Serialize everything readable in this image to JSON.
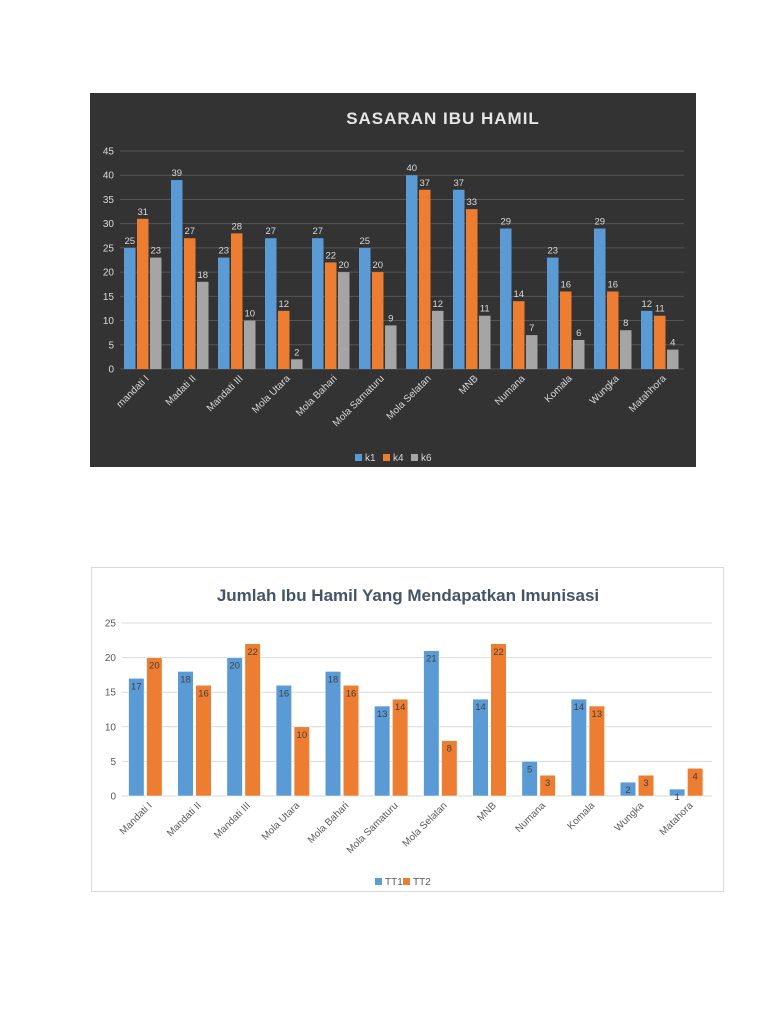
{
  "chart_data": [
    {
      "type": "bar",
      "title": "SASARAN IBU HAMIL",
      "categories": [
        "mandati I",
        "Madati II",
        "Mandati III",
        "Mola Utara",
        "Mola Bahari",
        "Mola Samaturu",
        "Mola Selatan",
        "MNB",
        "Numana",
        "Komala",
        "Wungka",
        "Matahhora"
      ],
      "series": [
        {
          "name": "k1",
          "values": [
            25,
            39,
            23,
            27,
            27,
            25,
            40,
            37,
            29,
            23,
            29,
            12
          ]
        },
        {
          "name": "k4",
          "values": [
            31,
            27,
            28,
            12,
            22,
            20,
            37,
            33,
            14,
            16,
            16,
            11
          ]
        },
        {
          "name": "k6",
          "values": [
            23,
            18,
            10,
            2,
            20,
            9,
            12,
            11,
            7,
            6,
            8,
            4
          ]
        }
      ],
      "ylim": [
        0,
        45
      ],
      "yticks": [
        0,
        5,
        10,
        15,
        20,
        25,
        30,
        35,
        40,
        45
      ],
      "grid": true,
      "legend": "bottom",
      "colors": {
        "background": "#333333",
        "k1": "#5b9bd5",
        "k4": "#ed7d31",
        "k6": "#a5a5a5",
        "text": "#d9d9d9",
        "grid": "#555555"
      }
    },
    {
      "type": "bar",
      "title": "Jumlah Ibu Hamil Yang Mendapatkan Imunisasi",
      "categories": [
        "Mandati I",
        "Mandati II",
        "Mandati III",
        "Mola Utara",
        "Mola Bahari",
        "Mola Samaturu",
        "Mola Selatan",
        "MNB",
        "Numana",
        "Komala",
        "Wungka",
        "Matahora"
      ],
      "series": [
        {
          "name": "TT1",
          "values": [
            17,
            18,
            20,
            16,
            18,
            13,
            21,
            14,
            5,
            14,
            2,
            1
          ]
        },
        {
          "name": "TT2",
          "values": [
            20,
            16,
            22,
            10,
            16,
            14,
            8,
            22,
            3,
            13,
            3,
            4
          ]
        }
      ],
      "ylim": [
        0,
        25
      ],
      "yticks": [
        0,
        5,
        10,
        15,
        20,
        25
      ],
      "grid": true,
      "legend": "bottom",
      "colors": {
        "background": "#ffffff",
        "TT1": "#5b9bd5",
        "TT2": "#ed7d31",
        "title": "#44546a",
        "text": "#595959",
        "grid": "#d9d9d9",
        "label": "#404040"
      }
    }
  ]
}
